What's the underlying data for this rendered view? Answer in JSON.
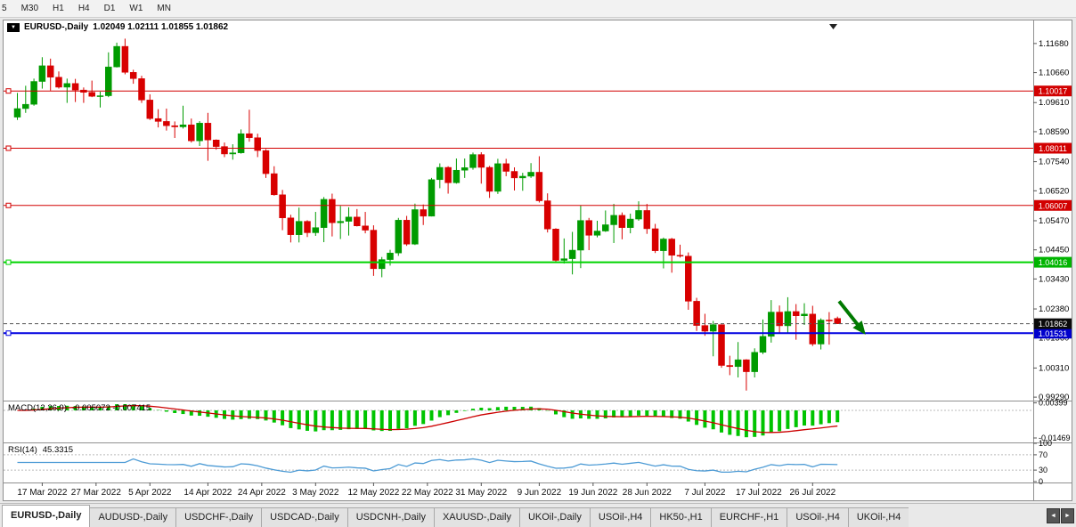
{
  "toolbar": {
    "timeframes": [
      "5",
      "M30",
      "H1",
      "H4",
      "D1",
      "W1",
      "MN"
    ]
  },
  "chart": {
    "symbol": "EURUSD-,Daily",
    "ohlc_text": "1.02049 1.02111 1.01855 1.01862",
    "dropdown_icon": "▼"
  },
  "chart_data": {
    "type": "candlestick",
    "title": "EURUSD-,Daily",
    "ohlc_display": {
      "open": "1.02049",
      "high": "1.02111",
      "low": "1.01855",
      "close": "1.01862"
    },
    "colors": {
      "up": "#009b00",
      "down": "#d80000",
      "background": "#ffffff",
      "axis_text": "#000000"
    },
    "y_axis": {
      "min": 0.992,
      "max": 1.123,
      "ticks": [
        {
          "label": "1.11680",
          "value": 1.1168
        },
        {
          "label": "1.10660",
          "value": 1.1066
        },
        {
          "label": "1.09610",
          "value": 1.0961
        },
        {
          "label": "1.08590",
          "value": 1.0859
        },
        {
          "label": "1.07540",
          "value": 1.0754
        },
        {
          "label": "1.06520",
          "value": 1.0652
        },
        {
          "label": "1.05470",
          "value": 1.0547
        },
        {
          "label": "1.04450",
          "value": 1.0445
        },
        {
          "label": "1.03430",
          "value": 1.0343
        },
        {
          "label": "1.02380",
          "value": 1.0238
        },
        {
          "label": "1.01360",
          "value": 1.0136
        },
        {
          "label": "1.00310",
          "value": 1.0031
        },
        {
          "label": "0.99290",
          "value": 0.9929
        }
      ]
    },
    "levels": [
      {
        "price": 1.10017,
        "label": "1.10017",
        "color": "#d20000",
        "badge_color": "#d20000",
        "width": 1
      },
      {
        "price": 1.08011,
        "label": "1.08011",
        "color": "#d20000",
        "badge_color": "#d20000",
        "width": 1
      },
      {
        "price": 1.06007,
        "label": "1.06007",
        "color": "#d20000",
        "badge_color": "#d20000",
        "width": 1
      },
      {
        "price": 1.04016,
        "label": "1.04016",
        "color": "#00d400",
        "badge_color": "#00b400",
        "width": 2
      },
      {
        "price": 1.01531,
        "label": "1.01531",
        "color": "#0000e0",
        "badge_color": "#0000cc",
        "width": 2
      }
    ],
    "current_price": {
      "value": 1.01862,
      "label": "1.01862",
      "badge_color": "#0a0a0a"
    },
    "x_axis": {
      "labels": [
        {
          "text": "17 Mar 2022",
          "index": 3
        },
        {
          "text": "27 Mar 2022",
          "index": 9.5
        },
        {
          "text": "5 Apr 2022",
          "index": 16
        },
        {
          "text": "14 Apr 2022",
          "index": 23
        },
        {
          "text": "24 Apr 2022",
          "index": 29.5
        },
        {
          "text": "3 May 2022",
          "index": 36
        },
        {
          "text": "12 May 2022",
          "index": 43
        },
        {
          "text": "22 May 2022",
          "index": 49.5
        },
        {
          "text": "31 May 2022",
          "index": 56
        },
        {
          "text": "9 Jun 2022",
          "index": 63
        },
        {
          "text": "19 Jun 2022",
          "index": 69.5
        },
        {
          "text": "28 Jun 2022",
          "index": 76
        },
        {
          "text": "7 Jul 2022",
          "index": 83
        },
        {
          "text": "17 Jul 2022",
          "index": 89.5
        },
        {
          "text": "26 Jul 2022",
          "index": 96
        }
      ]
    },
    "candles": [
      [
        1.091,
        1.0995,
        1.09,
        1.094
      ],
      [
        1.094,
        1.102,
        1.0925,
        1.0955
      ],
      [
        1.0955,
        1.1045,
        1.095,
        1.1035
      ],
      [
        1.1035,
        1.112,
        1.101,
        1.109
      ],
      [
        1.109,
        1.1115,
        1.1003,
        1.105
      ],
      [
        1.105,
        1.107,
        1.101,
        1.1015
      ],
      [
        1.1015,
        1.1045,
        1.096,
        1.1028
      ],
      [
        1.1028,
        1.1044,
        1.0963,
        1.1005
      ],
      [
        1.1005,
        1.1014,
        1.096,
        1.0997
      ],
      [
        1.0997,
        1.1038,
        1.098,
        1.0983
      ],
      [
        1.0983,
        1.0999,
        1.0944,
        1.0985
      ],
      [
        1.0985,
        1.1137,
        1.098,
        1.1086
      ],
      [
        1.1086,
        1.1171,
        1.1084,
        1.1158
      ],
      [
        1.1158,
        1.1185,
        1.106,
        1.1067
      ],
      [
        1.1067,
        1.1076,
        1.1027,
        1.1045
      ],
      [
        1.1045,
        1.1055,
        1.096,
        1.097
      ],
      [
        1.097,
        1.099,
        1.09,
        1.0905
      ],
      [
        1.0905,
        1.0938,
        1.0874,
        1.0895
      ],
      [
        1.0895,
        1.094,
        1.0863,
        1.088
      ],
      [
        1.088,
        1.0895,
        1.0837,
        1.0876
      ],
      [
        1.0876,
        1.095,
        1.087,
        1.0883
      ],
      [
        1.0883,
        1.0905,
        1.0821,
        1.0827
      ],
      [
        1.0827,
        1.0896,
        1.0809,
        1.0889
      ],
      [
        1.0889,
        1.0925,
        1.0757,
        1.083
      ],
      [
        1.083,
        1.0832,
        1.0796,
        1.0807
      ],
      [
        1.0807,
        1.0821,
        1.077,
        1.0781
      ],
      [
        1.0781,
        1.0815,
        1.0761,
        1.0785
      ],
      [
        1.0785,
        1.0867,
        1.0782,
        1.0852
      ],
      [
        1.0852,
        1.0936,
        1.0824,
        1.0838
      ],
      [
        1.0838,
        1.0852,
        1.077,
        1.0793
      ],
      [
        1.0793,
        1.0798,
        1.0697,
        1.0712
      ],
      [
        1.0712,
        1.0738,
        1.0635,
        1.0638
      ],
      [
        1.0638,
        1.0655,
        1.0514,
        1.0557
      ],
      [
        1.0557,
        1.0568,
        1.0471,
        1.0498
      ],
      [
        1.0498,
        1.0593,
        1.0471,
        1.0545
      ],
      [
        1.0545,
        1.0549,
        1.049,
        1.0505
      ],
      [
        1.0505,
        1.0578,
        1.0494,
        1.0523
      ],
      [
        1.0523,
        1.063,
        1.0472,
        1.0622
      ],
      [
        1.0622,
        1.0642,
        1.0492,
        1.054
      ],
      [
        1.054,
        1.0599,
        1.0483,
        1.0545
      ],
      [
        1.0545,
        1.0594,
        1.0495,
        1.056
      ],
      [
        1.056,
        1.0588,
        1.0527,
        1.0529
      ],
      [
        1.0529,
        1.0578,
        1.0503,
        1.0514
      ],
      [
        1.0514,
        1.0531,
        1.0354,
        1.0379
      ],
      [
        1.0379,
        1.042,
        1.0349,
        1.0411
      ],
      [
        1.0411,
        1.0445,
        1.039,
        1.0434
      ],
      [
        1.0434,
        1.0557,
        1.0424,
        1.0549
      ],
      [
        1.0549,
        1.0564,
        1.0459,
        1.0465
      ],
      [
        1.0465,
        1.0607,
        1.0462,
        1.0586
      ],
      [
        1.0586,
        1.0604,
        1.0532,
        1.0563
      ],
      [
        1.0563,
        1.0697,
        1.0562,
        1.0691
      ],
      [
        1.0691,
        1.0748,
        1.0661,
        1.0734
      ],
      [
        1.0734,
        1.0738,
        1.0642,
        1.068
      ],
      [
        1.068,
        1.0765,
        1.0677,
        1.0724
      ],
      [
        1.0724,
        1.0765,
        1.0697,
        1.0733
      ],
      [
        1.0733,
        1.0786,
        1.0726,
        1.0779
      ],
      [
        1.0779,
        1.0787,
        1.0677,
        1.0734
      ],
      [
        1.0734,
        1.0739,
        1.0627,
        1.065
      ],
      [
        1.065,
        1.0764,
        1.0641,
        1.0747
      ],
      [
        1.0747,
        1.0764,
        1.0703,
        1.072
      ],
      [
        1.072,
        1.0734,
        1.0653,
        1.0697
      ],
      [
        1.0697,
        1.0715,
        1.0652,
        1.0703
      ],
      [
        1.0703,
        1.0749,
        1.0697,
        1.0717
      ],
      [
        1.0717,
        1.0773,
        1.0611,
        1.0617
      ],
      [
        1.0617,
        1.0643,
        1.0506,
        1.0518
      ],
      [
        1.0518,
        1.0521,
        1.0399,
        1.0408
      ],
      [
        1.0408,
        1.0485,
        1.0397,
        1.0414
      ],
      [
        1.0414,
        1.0508,
        1.0359,
        1.0444
      ],
      [
        1.0444,
        1.0601,
        1.0381,
        1.0548
      ],
      [
        1.0548,
        1.0557,
        1.0444,
        1.0496
      ],
      [
        1.0496,
        1.0547,
        1.0489,
        1.0511
      ],
      [
        1.0511,
        1.0583,
        1.0508,
        1.0533
      ],
      [
        1.0533,
        1.0606,
        1.0469,
        1.0566
      ],
      [
        1.0566,
        1.0576,
        1.0482,
        1.0523
      ],
      [
        1.0523,
        1.0572,
        1.0503,
        1.0553
      ],
      [
        1.0553,
        1.0615,
        1.0547,
        1.0583
      ],
      [
        1.0583,
        1.0606,
        1.0501,
        1.0519
      ],
      [
        1.0519,
        1.0536,
        1.0434,
        1.0442
      ],
      [
        1.0442,
        1.0488,
        1.038,
        1.0483
      ],
      [
        1.0483,
        1.0487,
        1.0365,
        1.0426
      ],
      [
        1.0426,
        1.0463,
        1.0418,
        1.0423
      ],
      [
        1.0423,
        1.0436,
        1.0235,
        1.0265
      ],
      [
        1.0265,
        1.0277,
        1.0161,
        1.018
      ],
      [
        1.018,
        1.0221,
        1.0144,
        1.016
      ],
      [
        1.016,
        1.0196,
        1.0072,
        1.0183
      ],
      [
        1.0183,
        1.0184,
        1.0032,
        1.004
      ],
      [
        1.004,
        1.0074,
        1.0006,
        1.0036
      ],
      [
        1.0036,
        1.0122,
        0.9998,
        1.006
      ],
      [
        1.006,
        1.0062,
        0.9952,
        1.0018
      ],
      [
        1.0018,
        1.01,
        0.9998,
        1.0086
      ],
      [
        1.0086,
        1.0201,
        1.008,
        1.0142
      ],
      [
        1.0142,
        1.0269,
        1.012,
        1.0227
      ],
      [
        1.0227,
        1.025,
        1.0155,
        1.0179
      ],
      [
        1.0179,
        1.0279,
        1.0153,
        1.0229
      ],
      [
        1.0229,
        1.0255,
        1.013,
        1.0214
      ],
      [
        1.0214,
        1.0258,
        1.0182,
        1.022
      ],
      [
        1.022,
        1.0249,
        1.0108,
        1.0115
      ],
      [
        1.0115,
        1.0205,
        1.0096,
        1.0199
      ],
      [
        1.0199,
        1.0227,
        1.0113,
        1.0196
      ],
      [
        1.02049,
        1.02111,
        1.01855,
        1.01862
      ]
    ],
    "indicators": {
      "macd": {
        "label": "MACD(12,26,9)",
        "values_text": "-0.005072 -0.007415",
        "params": [
          12,
          26,
          9
        ],
        "histogram_color": "#00c400",
        "signal_color": "#cc0000",
        "axis_ticks": [
          {
            "label": "0.00399",
            "value": 0.00399
          },
          {
            "label": "-0.01469",
            "value": -0.01469
          }
        ]
      },
      "rsi": {
        "label": "RSI(14)",
        "value_text": "45.3315",
        "period": 14,
        "line_color": "#4d9bd5",
        "levels": [
          70,
          30
        ],
        "axis_ticks": [
          {
            "label": "100",
            "value": 100
          },
          {
            "label": "70",
            "value": 70
          },
          {
            "label": "30",
            "value": 30
          },
          {
            "label": "0",
            "value": 0
          }
        ]
      }
    },
    "arrow_annotation": {
      "color": "#007a00",
      "from": {
        "index": 99.2,
        "price": 1.0265
      },
      "to": {
        "index": 102.4,
        "price": 1.0148
      }
    }
  },
  "tabs": {
    "scroll_left_icon": "◄",
    "scroll_right_icon": "►",
    "items": [
      {
        "label": "EURUSD-,Daily",
        "active": true
      },
      {
        "label": "AUDUSD-,Daily",
        "active": false
      },
      {
        "label": "USDCHF-,Daily",
        "active": false
      },
      {
        "label": "USDCAD-,Daily",
        "active": false
      },
      {
        "label": "USDCNH-,Daily",
        "active": false
      },
      {
        "label": "XAUUSD-,Daily",
        "active": false
      },
      {
        "label": "UKOil-,Daily",
        "active": false
      },
      {
        "label": "USOil-,H4",
        "active": false
      },
      {
        "label": "HK50-,H1",
        "active": false
      },
      {
        "label": "EURCHF-,H1",
        "active": false
      },
      {
        "label": "USOil-,H4",
        "active": false
      },
      {
        "label": "UKOil-,H4",
        "active": false
      }
    ]
  }
}
